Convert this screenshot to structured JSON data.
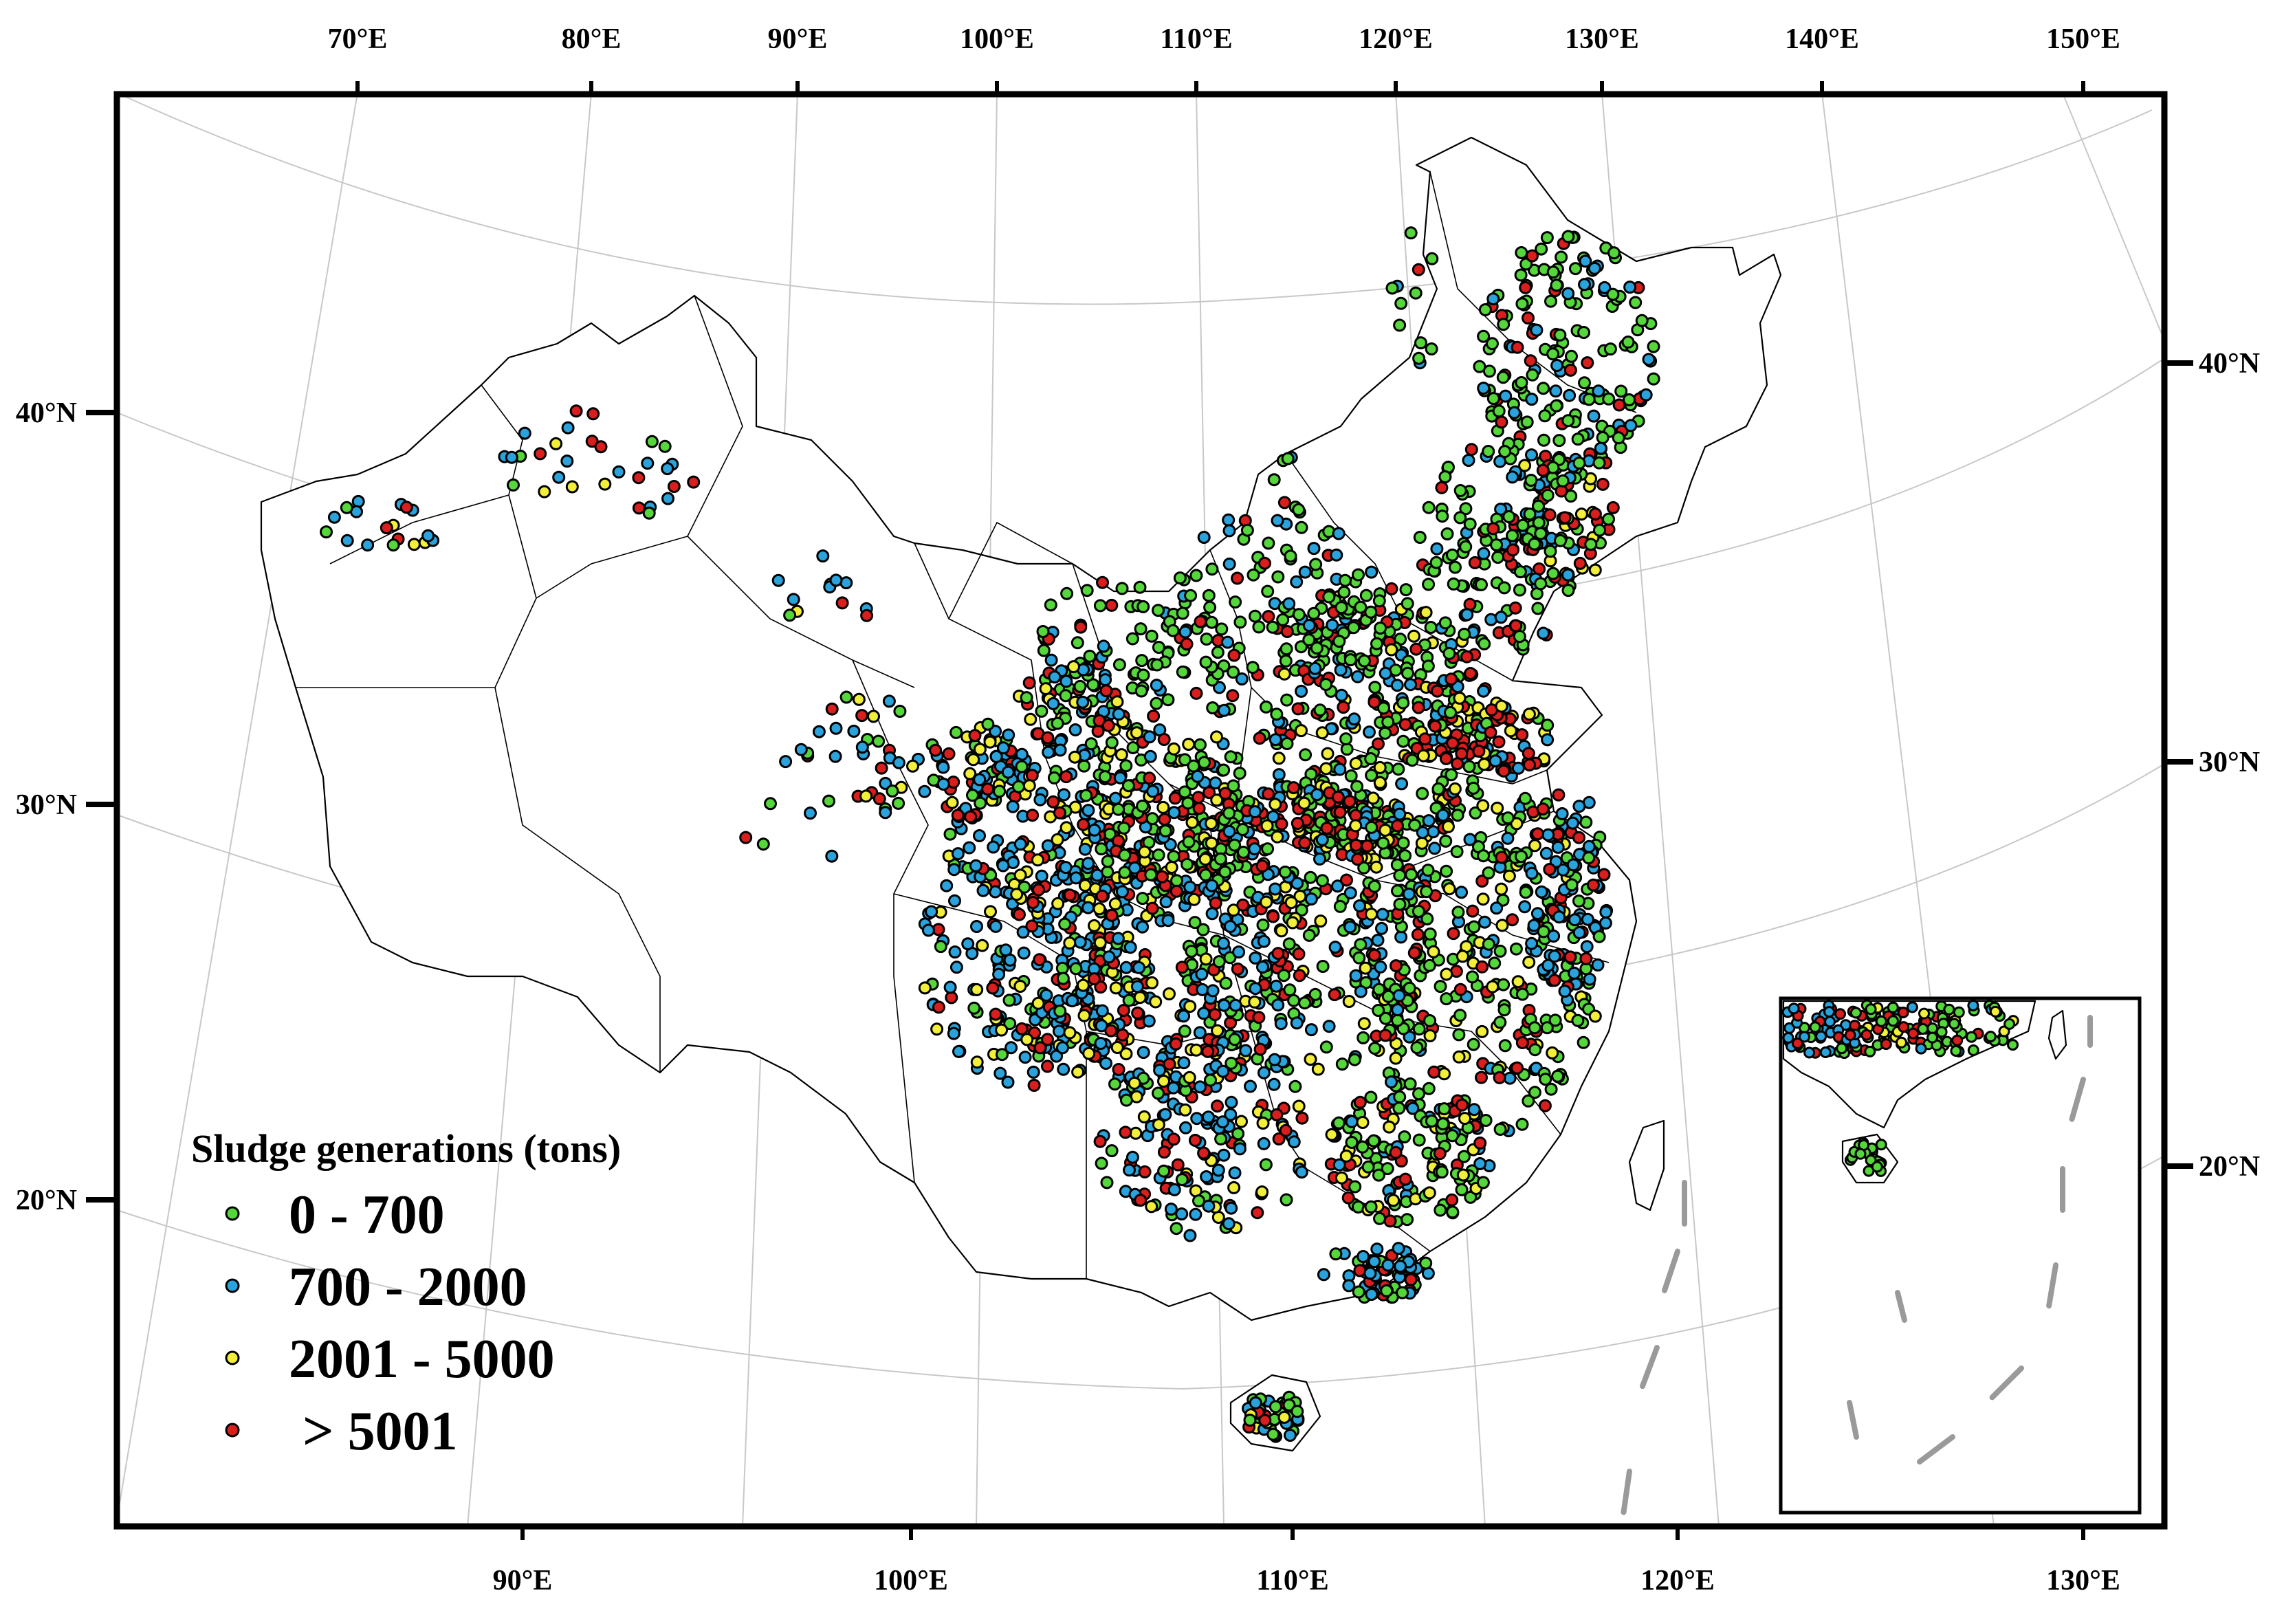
{
  "colors": {
    "class_0_700": "#55d63a",
    "class_700_2000": "#2aa3dc",
    "class_2001_5000": "#f2ef3a",
    "class_gt_5001": "#d91e1e"
  },
  "top_axis": [
    "70°E",
    "80°E",
    "90°E",
    "100°E",
    "110°E",
    "120°E",
    "130°E",
    "140°E",
    "150°E"
  ],
  "bottom_axis": [
    "90°E",
    "100°E",
    "110°E",
    "120°E",
    "130°E"
  ],
  "left_axis": [
    "40°N",
    "30°N",
    "20°N"
  ],
  "right_axis": [
    "40°N",
    "30°N",
    "20°N"
  ],
  "legend": {
    "title": "Sludge generations (tons)",
    "items": [
      {
        "label": "0 - 700",
        "color": "#55d63a"
      },
      {
        "label": "700 - 2000",
        "color": "#2aa3dc"
      },
      {
        "label": "2001 - 5000",
        "color": "#f2ef3a"
      },
      {
        "label": "> 5001",
        "color": "#d91e1e"
      }
    ]
  }
}
